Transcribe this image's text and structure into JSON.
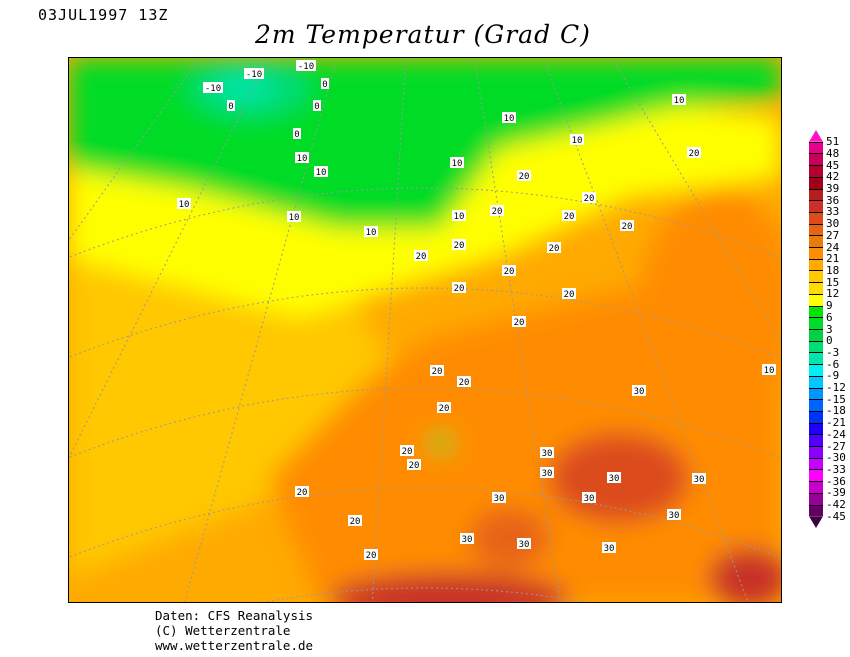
{
  "header": {
    "date": "03JUL1997 13Z",
    "title": "2m Temperatur (Grad C)"
  },
  "credits": {
    "line1": "Daten: CFS Reanalysis",
    "line2": "(C) Wetterzentrale",
    "line3": "www.wetterzentrale.de"
  },
  "colorbar": {
    "labels": [
      "51",
      "48",
      "45",
      "42",
      "39",
      "36",
      "33",
      "30",
      "27",
      "24",
      "21",
      "18",
      "15",
      "12",
      "9",
      "6",
      "3",
      "0",
      "-3",
      "-6",
      "-9",
      "-12",
      "-15",
      "-18",
      "-21",
      "-24",
      "-27",
      "-30",
      "-33",
      "-36",
      "-39",
      "-42",
      "-45"
    ],
    "colors": [
      "#ff14c8",
      "#e6008c",
      "#c8005a",
      "#b40032",
      "#a00014",
      "#b41e1e",
      "#c83228",
      "#dc4b1e",
      "#e66414",
      "#e67d0a",
      "#ff8c00",
      "#ffaa00",
      "#ffc800",
      "#ffdc00",
      "#ffff00",
      "#00e600",
      "#00dc28",
      "#00d246",
      "#00dc78",
      "#00e6aa",
      "#00f0f0",
      "#00c8ff",
      "#0096ff",
      "#0064ff",
      "#0032ff",
      "#1e00ff",
      "#5000ff",
      "#8c00ff",
      "#c800ff",
      "#ff00ff",
      "#c800c8",
      "#960096",
      "#640064",
      "#3c003c"
    ]
  },
  "map": {
    "contour_labels": [
      "-10",
      "-10",
      "0",
      "0",
      "-10",
      "0",
      "0",
      "10",
      "10",
      "10",
      "10",
      "10",
      "10",
      "10",
      "10",
      "10",
      "10",
      "20",
      "20",
      "20",
      "20",
      "20",
      "20",
      "20",
      "20",
      "20",
      "20",
      "20",
      "20",
      "20",
      "20",
      "20",
      "20",
      "20",
      "20",
      "20",
      "20",
      "20",
      "30",
      "30",
      "30",
      "30",
      "30",
      "30",
      "30",
      "30",
      "30",
      "30",
      "30",
      "10"
    ]
  }
}
